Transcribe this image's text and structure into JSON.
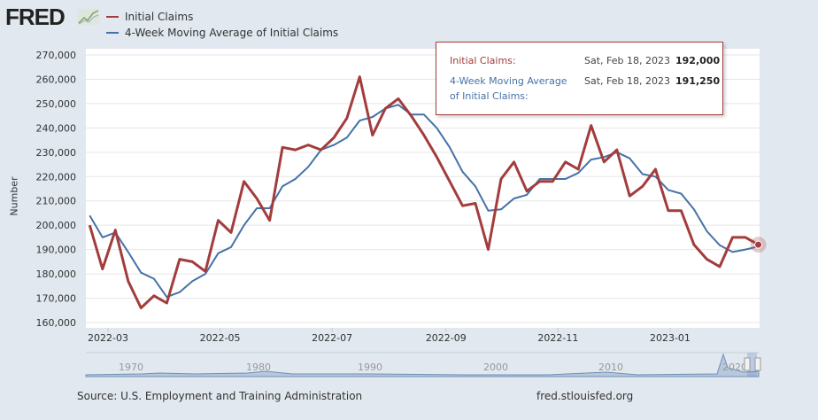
{
  "header": {
    "logo": "FRED",
    "logo_icon": "fred-chart-logo-icon"
  },
  "legend": [
    {
      "label": "Initial Claims",
      "color": "#a33c3c"
    },
    {
      "label": "4-Week Moving Average of Initial Claims",
      "color": "#4572a7"
    }
  ],
  "tooltip": {
    "series1_label": "Initial Claims:",
    "series1_date": "Sat, Feb 18, 2023",
    "series1_value": "192,000",
    "series2_label_line1": "4-Week Moving Average",
    "series2_label_line2": "of Initial Claims:",
    "series2_date": "Sat, Feb 18, 2023",
    "series2_value": "191,250"
  },
  "footer": {
    "source": "Source: U.S. Employment and Training Administration",
    "site": "fred.stlouisfed.org"
  },
  "navigator": {
    "labels": [
      "1970",
      "1980",
      "1990",
      "2000",
      "2010",
      "2020"
    ]
  },
  "chart_data": {
    "type": "line",
    "ylabel": "Number",
    "ylim": [
      160000,
      270000
    ],
    "yticks": [
      "160,000",
      "170,000",
      "180,000",
      "190,000",
      "200,000",
      "210,000",
      "220,000",
      "230,000",
      "240,000",
      "250,000",
      "260,000",
      "270,000"
    ],
    "xticks": [
      {
        "date": "2022-03-01",
        "label": "2022-03"
      },
      {
        "date": "2022-05-01",
        "label": "2022-05"
      },
      {
        "date": "2022-07-01",
        "label": "2022-07"
      },
      {
        "date": "2022-09-01",
        "label": "2022-09"
      },
      {
        "date": "2022-11-01",
        "label": "2022-11"
      },
      {
        "date": "2023-01-01",
        "label": "2023-01"
      }
    ],
    "grid": true,
    "legend_position": "top-left",
    "x": [
      "2022-02-19",
      "2022-02-26",
      "2022-03-05",
      "2022-03-12",
      "2022-03-19",
      "2022-03-26",
      "2022-04-02",
      "2022-04-09",
      "2022-04-16",
      "2022-04-23",
      "2022-04-30",
      "2022-05-07",
      "2022-05-14",
      "2022-05-21",
      "2022-05-28",
      "2022-06-04",
      "2022-06-11",
      "2022-06-18",
      "2022-06-25",
      "2022-07-02",
      "2022-07-09",
      "2022-07-16",
      "2022-07-23",
      "2022-07-30",
      "2022-08-06",
      "2022-08-13",
      "2022-08-20",
      "2022-08-27",
      "2022-09-03",
      "2022-09-10",
      "2022-09-17",
      "2022-09-24",
      "2022-10-01",
      "2022-10-08",
      "2022-10-15",
      "2022-10-22",
      "2022-10-29",
      "2022-11-05",
      "2022-11-12",
      "2022-11-19",
      "2022-11-26",
      "2022-12-03",
      "2022-12-10",
      "2022-12-17",
      "2022-12-24",
      "2022-12-31",
      "2023-01-07",
      "2023-01-14",
      "2023-01-21",
      "2023-01-28",
      "2023-02-04",
      "2023-02-11",
      "2023-02-18"
    ],
    "series": [
      {
        "name": "Initial Claims",
        "color": "#a33c3c",
        "values": [
          200000,
          182000,
          198000,
          177000,
          166000,
          171000,
          168000,
          186000,
          185000,
          181000,
          202000,
          197000,
          218000,
          211000,
          202000,
          232000,
          231000,
          233000,
          231000,
          236000,
          244000,
          261000,
          237000,
          248000,
          252000,
          245000,
          237000,
          228000,
          218000,
          208000,
          209000,
          190000,
          219000,
          226000,
          214000,
          218000,
          218000,
          226000,
          223000,
          241000,
          226000,
          231000,
          212000,
          216000,
          223000,
          206000,
          206000,
          192000,
          186000,
          183000,
          195000,
          195000,
          192000
        ]
      },
      {
        "name": "4-Week Moving Average of Initial Claims",
        "color": "#4572a7",
        "values": [
          204000,
          195000,
          197000,
          189000,
          180500,
          178000,
          170500,
          172500,
          177000,
          180000,
          188500,
          191000,
          200000,
          207000,
          207000,
          216000,
          219000,
          224000,
          231000,
          233000,
          236000,
          243000,
          244500,
          248000,
          249500,
          245500,
          245500,
          240000,
          232000,
          222000,
          216000,
          206000,
          206500,
          211000,
          212500,
          219000,
          219000,
          219000,
          221500,
          227000,
          228000,
          230000,
          227500,
          221000,
          220000,
          214500,
          213000,
          206500,
          197500,
          191750,
          189000,
          190000,
          191250
        ]
      }
    ]
  }
}
